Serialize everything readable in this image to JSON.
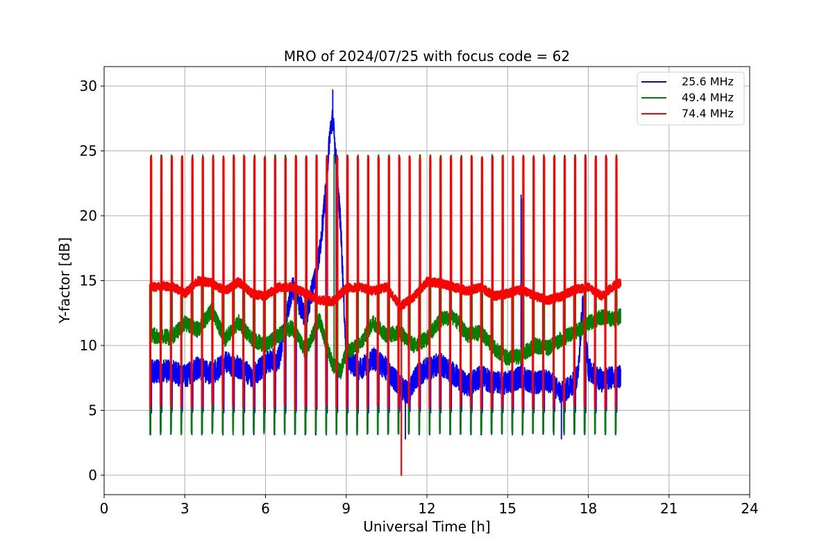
{
  "chart_data": {
    "type": "line",
    "title": "MRO of 2024/07/25 with focus code = 62",
    "xlabel": "Universal Time [h]",
    "ylabel": "Y-factor [dB]",
    "xlim": [
      0,
      24
    ],
    "ylim": [
      -1.5,
      31.5
    ],
    "xticks": [
      0,
      3,
      6,
      9,
      12,
      15,
      18,
      21,
      24
    ],
    "yticks": [
      0,
      5,
      10,
      15,
      20,
      25,
      30
    ],
    "grid": true,
    "legend_position": "top-right",
    "calibration": {
      "t_start": 1.75,
      "t_end": 19.05,
      "n_cycles": 46,
      "spike_peak": 24.6,
      "trough_min": 3.1
    },
    "series": [
      {
        "name": "25.6 MHz",
        "color": "#0000ff",
        "baseline": {
          "x": [
            1.7,
            2.5,
            3.0,
            3.5,
            4.0,
            4.5,
            5.0,
            5.5,
            6.0,
            6.5,
            7.0,
            7.5,
            7.8,
            8.0,
            8.2,
            8.4,
            8.5,
            8.6,
            8.8,
            9.0,
            9.5,
            10.0,
            10.5,
            11.0,
            11.3,
            11.6,
            12.0,
            12.5,
            13.0,
            13.5,
            14.0,
            14.5,
            15.0,
            15.5,
            16.0,
            16.5,
            17.0,
            17.3,
            17.6,
            17.8,
            18.0,
            18.5,
            19.0,
            19.2
          ],
          "y": [
            8.0,
            8.0,
            7.6,
            8.3,
            7.8,
            8.7,
            8.3,
            7.6,
            8.6,
            9.0,
            14.5,
            12.0,
            15.0,
            17.0,
            21.0,
            26.5,
            27.5,
            25.0,
            19.0,
            9.0,
            8.2,
            9.0,
            8.2,
            6.9,
            6.3,
            7.6,
            8.2,
            8.6,
            7.8,
            6.9,
            7.6,
            7.1,
            7.1,
            7.6,
            7.1,
            7.3,
            6.3,
            6.8,
            7.6,
            13.5,
            8.2,
            7.3,
            7.6,
            7.6
          ]
        },
        "isolated_peaks": [
          {
            "x": 8.5,
            "y": 29.7
          },
          {
            "x": 15.5,
            "y": 21.6
          },
          {
            "x": 17.9,
            "y": 16.6
          },
          {
            "x": 11.2,
            "y": 2.8
          },
          {
            "x": 17.0,
            "y": 2.8
          }
        ]
      },
      {
        "name": "49.4 MHz",
        "color": "#008000",
        "baseline": {
          "x": [
            1.7,
            2.5,
            3.0,
            3.5,
            4.0,
            4.5,
            5.0,
            5.5,
            6.0,
            6.5,
            7.0,
            7.5,
            8.0,
            8.5,
            8.8,
            9.0,
            9.5,
            10.0,
            10.5,
            11.0,
            11.5,
            12.0,
            12.5,
            13.0,
            13.5,
            14.0,
            14.5,
            15.0,
            15.5,
            16.0,
            16.5,
            17.0,
            17.5,
            18.0,
            18.5,
            19.0,
            19.2
          ],
          "y": [
            10.8,
            10.6,
            11.7,
            11.2,
            12.7,
            10.5,
            11.8,
            10.5,
            10.0,
            10.8,
            11.4,
            9.5,
            12.0,
            8.5,
            8.0,
            9.5,
            10.0,
            11.8,
            10.8,
            11.0,
            10.0,
            10.5,
            12.0,
            12.2,
            10.8,
            11.0,
            9.8,
            9.0,
            9.2,
            10.0,
            9.8,
            10.5,
            11.0,
            11.7,
            12.2,
            12.0,
            12.3
          ]
        },
        "isolated_peaks": [
          {
            "x": 15.55,
            "y": 21.3
          },
          {
            "x": 8.55,
            "y": 24.7
          }
        ]
      },
      {
        "name": "74.4 MHz",
        "color": "#ff0000",
        "baseline": {
          "x": [
            1.7,
            2.5,
            3.0,
            3.5,
            4.0,
            4.5,
            5.0,
            5.5,
            6.0,
            6.5,
            7.0,
            7.5,
            8.0,
            8.5,
            9.0,
            9.5,
            10.0,
            10.5,
            11.0,
            11.5,
            12.0,
            12.5,
            13.0,
            13.5,
            14.0,
            14.5,
            15.0,
            15.5,
            16.0,
            16.5,
            17.0,
            17.5,
            18.0,
            18.5,
            19.0,
            19.2
          ],
          "y": [
            14.5,
            14.6,
            14.0,
            15.0,
            14.8,
            14.2,
            14.9,
            14.0,
            13.8,
            14.5,
            14.5,
            14.0,
            13.5,
            13.4,
            14.4,
            14.5,
            14.2,
            14.5,
            13.0,
            13.7,
            14.9,
            14.8,
            14.5,
            14.2,
            14.5,
            13.8,
            14.0,
            14.3,
            13.8,
            13.5,
            13.8,
            14.3,
            14.5,
            13.8,
            14.7,
            14.8
          ]
        },
        "isolated_peaks": [
          {
            "x": 11.05,
            "y": 0.0
          }
        ]
      }
    ]
  }
}
